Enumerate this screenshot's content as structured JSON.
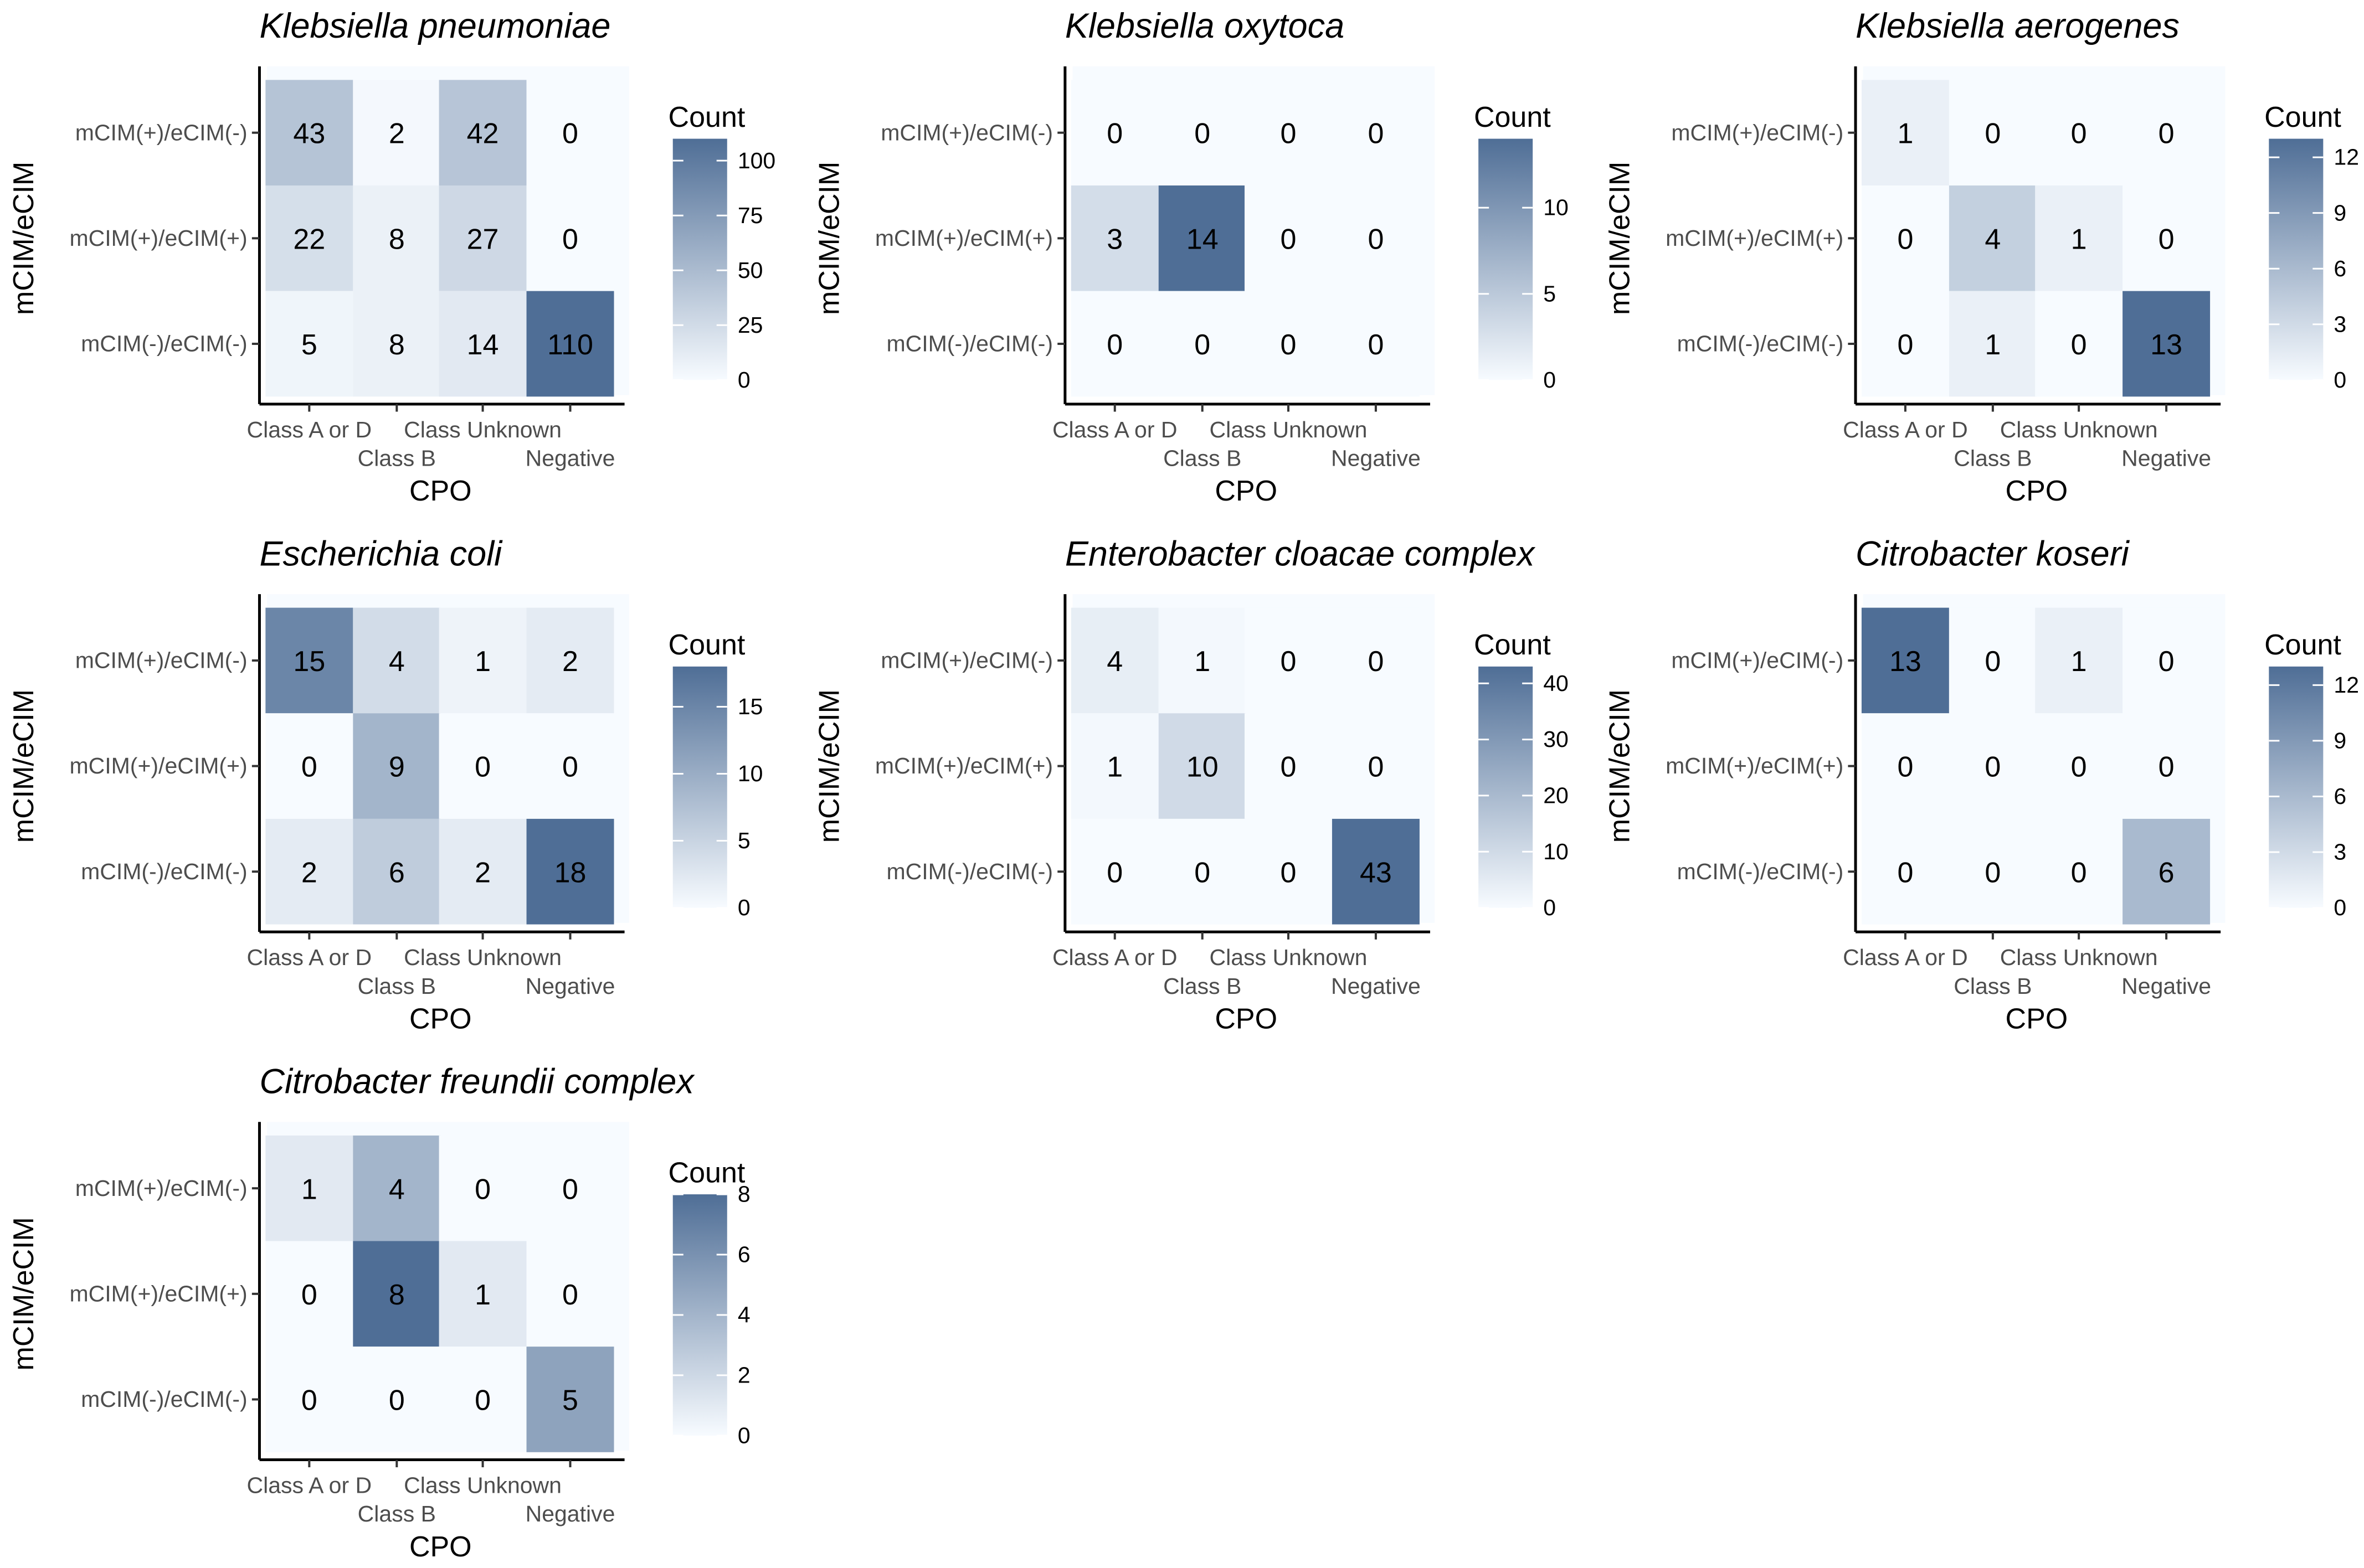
{
  "chart_data": [
    {
      "type": "heatmap",
      "title": "Klebsiella pneumoniae",
      "xlabel": "CPO",
      "ylabel": "mCIM/eCIM",
      "x_categories": [
        "Class A or D",
        "Class B",
        "Class Unknown",
        "Negative"
      ],
      "y_categories": [
        "mCIM(+)/eCIM(-)",
        "mCIM(+)/eCIM(+)",
        "mCIM(-)/eCIM(-)"
      ],
      "values": [
        [
          43,
          2,
          42,
          0
        ],
        [
          22,
          8,
          27,
          0
        ],
        [
          5,
          8,
          14,
          110
        ]
      ],
      "legend": {
        "title": "Count",
        "min": 0,
        "max": 110,
        "ticks": [
          0,
          25,
          50,
          75,
          100
        ]
      }
    },
    {
      "type": "heatmap",
      "title": "Klebsiella oxytoca",
      "xlabel": "CPO",
      "ylabel": "mCIM/eCIM",
      "x_categories": [
        "Class A or D",
        "Class B",
        "Class Unknown",
        "Negative"
      ],
      "y_categories": [
        "mCIM(+)/eCIM(-)",
        "mCIM(+)/eCIM(+)",
        "mCIM(-)/eCIM(-)"
      ],
      "values": [
        [
          0,
          0,
          0,
          0
        ],
        [
          3,
          14,
          0,
          0
        ],
        [
          0,
          0,
          0,
          0
        ]
      ],
      "legend": {
        "title": "Count",
        "min": 0,
        "max": 14,
        "ticks": [
          0,
          5,
          10
        ]
      }
    },
    {
      "type": "heatmap",
      "title": "Klebsiella aerogenes",
      "xlabel": "CPO",
      "ylabel": "mCIM/eCIM",
      "x_categories": [
        "Class A or D",
        "Class B",
        "Class Unknown",
        "Negative"
      ],
      "y_categories": [
        "mCIM(+)/eCIM(-)",
        "mCIM(+)/eCIM(+)",
        "mCIM(-)/eCIM(-)"
      ],
      "values": [
        [
          1,
          0,
          0,
          0
        ],
        [
          0,
          4,
          1,
          0
        ],
        [
          0,
          1,
          0,
          13
        ]
      ],
      "legend": {
        "title": "Count",
        "min": 0,
        "max": 13,
        "ticks": [
          0,
          3,
          6,
          9,
          12
        ]
      }
    },
    {
      "type": "heatmap",
      "title": "Escherichia coli",
      "xlabel": "CPO",
      "ylabel": "mCIM/eCIM",
      "x_categories": [
        "Class A or D",
        "Class B",
        "Class Unknown",
        "Negative"
      ],
      "y_categories": [
        "mCIM(+)/eCIM(-)",
        "mCIM(+)/eCIM(+)",
        "mCIM(-)/eCIM(-)"
      ],
      "values": [
        [
          15,
          4,
          1,
          2
        ],
        [
          0,
          9,
          0,
          0
        ],
        [
          2,
          6,
          2,
          18
        ]
      ],
      "legend": {
        "title": "Count",
        "min": 0,
        "max": 18,
        "ticks": [
          0,
          5,
          10,
          15
        ]
      }
    },
    {
      "type": "heatmap",
      "title": "Enterobacter cloacae complex",
      "xlabel": "CPO",
      "ylabel": "mCIM/eCIM",
      "x_categories": [
        "Class A or D",
        "Class B",
        "Class Unknown",
        "Negative"
      ],
      "y_categories": [
        "mCIM(+)/eCIM(-)",
        "mCIM(+)/eCIM(+)",
        "mCIM(-)/eCIM(-)"
      ],
      "values": [
        [
          4,
          1,
          0,
          0
        ],
        [
          1,
          10,
          0,
          0
        ],
        [
          0,
          0,
          0,
          43
        ]
      ],
      "legend": {
        "title": "Count",
        "min": 0,
        "max": 43,
        "ticks": [
          0,
          10,
          20,
          30,
          40
        ]
      }
    },
    {
      "type": "heatmap",
      "title": "Citrobacter koseri",
      "xlabel": "CPO",
      "ylabel": "mCIM/eCIM",
      "x_categories": [
        "Class A or D",
        "Class B",
        "Class Unknown",
        "Negative"
      ],
      "y_categories": [
        "mCIM(+)/eCIM(-)",
        "mCIM(+)/eCIM(+)",
        "mCIM(-)/eCIM(-)"
      ],
      "values": [
        [
          13,
          0,
          1,
          0
        ],
        [
          0,
          0,
          0,
          0
        ],
        [
          0,
          0,
          0,
          6
        ]
      ],
      "legend": {
        "title": "Count",
        "min": 0,
        "max": 13,
        "ticks": [
          0,
          3,
          6,
          9,
          12
        ]
      }
    },
    {
      "type": "heatmap",
      "title": "Citrobacter freundii complex",
      "xlabel": "CPO",
      "ylabel": "mCIM/eCIM",
      "x_categories": [
        "Class A or D",
        "Class B",
        "Class Unknown",
        "Negative"
      ],
      "y_categories": [
        "mCIM(+)/eCIM(-)",
        "mCIM(+)/eCIM(+)",
        "mCIM(-)/eCIM(-)"
      ],
      "values": [
        [
          1,
          4,
          0,
          0
        ],
        [
          0,
          8,
          1,
          0
        ],
        [
          0,
          0,
          0,
          5
        ]
      ],
      "legend": {
        "title": "Count",
        "min": 0,
        "max": 8,
        "ticks": [
          0,
          2,
          4,
          6,
          8
        ]
      }
    }
  ],
  "colors": {
    "low": "#f7fbff",
    "high": "#4f6e96"
  }
}
